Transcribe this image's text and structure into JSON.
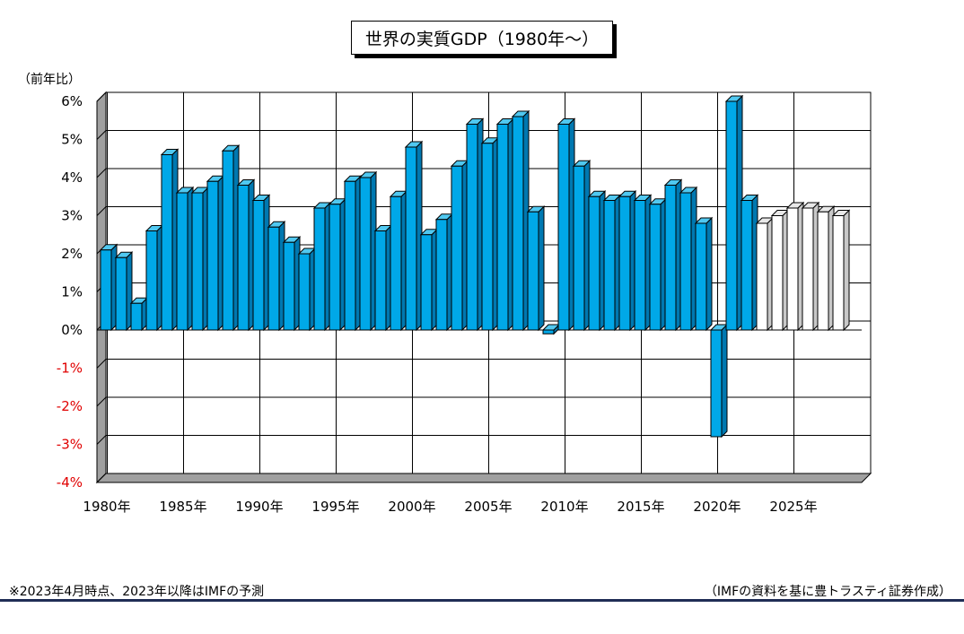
{
  "chart_data": {
    "type": "bar",
    "title": "世界の実質GDP（1980年～）",
    "ylabel": "（前年比）",
    "ylim": [
      -4,
      6
    ],
    "y_ticks": [
      "-4%",
      "-3%",
      "-2%",
      "-1%",
      "0%",
      "1%",
      "2%",
      "3%",
      "4%",
      "5%",
      "6%"
    ],
    "x_ticks": [
      "1980年",
      "1985年",
      "1990年",
      "1995年",
      "2000年",
      "2005年",
      "2010年",
      "2015年",
      "2020年",
      "2025年"
    ],
    "negative_tick_color": "#e00000",
    "grid": true,
    "categories": [
      1980,
      1981,
      1982,
      1983,
      1984,
      1985,
      1986,
      1987,
      1988,
      1989,
      1990,
      1991,
      1992,
      1993,
      1994,
      1995,
      1996,
      1997,
      1998,
      1999,
      2000,
      2001,
      2002,
      2003,
      2004,
      2005,
      2006,
      2007,
      2008,
      2009,
      2010,
      2011,
      2012,
      2013,
      2014,
      2015,
      2016,
      2017,
      2018,
      2019,
      2020,
      2021,
      2022,
      2023,
      2024,
      2025,
      2026,
      2027,
      2028
    ],
    "series": [
      {
        "values": [
          2.1,
          1.9,
          0.7,
          2.6,
          4.6,
          3.6,
          3.6,
          3.9,
          4.7,
          3.8,
          3.4,
          2.7,
          2.3,
          2.0,
          3.2,
          3.3,
          3.9,
          4.0,
          2.6,
          3.5,
          4.8,
          2.5,
          2.9,
          4.3,
          5.4,
          4.9,
          5.4,
          5.6,
          3.1,
          -0.1,
          5.4,
          4.3,
          3.5,
          3.4,
          3.5,
          3.4,
          3.3,
          3.8,
          3.6,
          2.8,
          -2.8,
          6.0,
          3.4,
          2.8,
          3.0,
          3.2,
          3.2,
          3.1,
          3.0
        ],
        "actual_color": "#00a8e8",
        "forecast_color": "#ffffff",
        "forecast_from": 2023
      }
    ]
  },
  "footnote": "※2023年4月時点、2023年以降はIMFの予測",
  "source": "（IMFの資料を基に豊トラスティ証券作成）"
}
